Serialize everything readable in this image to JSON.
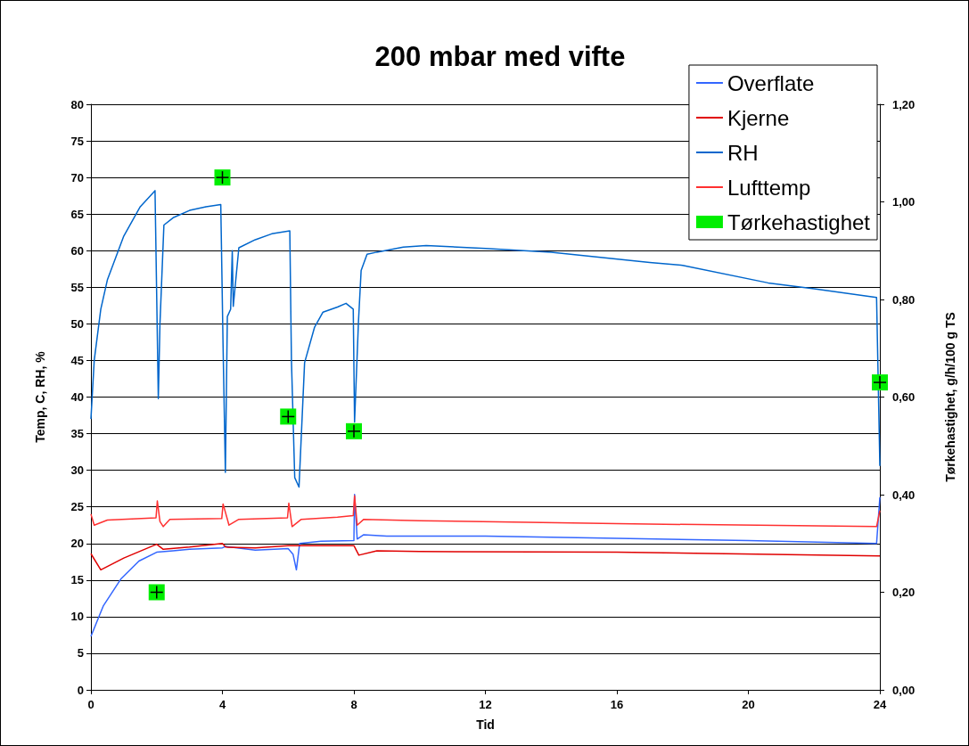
{
  "chart_data": {
    "type": "line",
    "title": "200 mbar med vifte",
    "xlabel": "Tid",
    "ylabel": "Temp, C, RH, %",
    "y2label": "Tørkehastighet, g/h/100 g TS",
    "xlim": [
      0,
      24
    ],
    "xticks": [
      0,
      4,
      8,
      12,
      16,
      20,
      24
    ],
    "ylim": [
      0,
      80
    ],
    "yticks": [
      0,
      5,
      10,
      15,
      20,
      25,
      30,
      35,
      40,
      45,
      50,
      55,
      60,
      65,
      70,
      75,
      80
    ],
    "y2lim": [
      0,
      1.2
    ],
    "y2ticks": [
      {
        "value": 0,
        "label": "0,00"
      },
      {
        "value": 0.2,
        "label": "0,20"
      },
      {
        "value": 0.4,
        "label": "0,40"
      },
      {
        "value": 0.6,
        "label": "0,60"
      },
      {
        "value": 0.8,
        "label": "0,80"
      },
      {
        "value": 1,
        "label": "1,00"
      },
      {
        "value": 1.2,
        "label": "1,20"
      }
    ],
    "grid": "y",
    "legend": "top right",
    "marker": "none",
    "series": [
      {
        "name": "Overflate",
        "color": "#3366ff",
        "x": [
          0,
          0.38,
          0.92,
          1.46,
          2,
          2.5,
          3,
          4,
          4.1,
          5,
          6,
          6.15,
          6.25,
          6.35,
          7,
          8,
          8.02,
          8.1,
          8.3,
          9,
          12,
          16,
          20,
          23.9,
          24
        ],
        "values": [
          7.3,
          11.5,
          15.2,
          17.6,
          18.8,
          19,
          19.2,
          19.4,
          19.6,
          19.1,
          19.3,
          18.5,
          16.4,
          20,
          20.3,
          20.4,
          26.7,
          20.6,
          21.2,
          21,
          21,
          20.7,
          20.4,
          20,
          26.3
        ]
      },
      {
        "name": "Kjerne",
        "color": "#e00000",
        "x": [
          0,
          0.3,
          1,
          2,
          2.2,
          3,
          4,
          4.1,
          5,
          6,
          7,
          8,
          8.15,
          8.7,
          10,
          16,
          24
        ],
        "values": [
          18.6,
          16.4,
          18,
          19.9,
          19.2,
          19.5,
          20,
          19.5,
          19.4,
          19.7,
          19.7,
          19.7,
          18.4,
          19,
          18.9,
          18.8,
          18.3
        ]
      },
      {
        "name": "RH",
        "color": "#0066cc",
        "x": [
          0,
          0.1,
          0.3,
          0.5,
          1,
          1.5,
          1.95,
          2.05,
          2.1,
          2.22,
          2.5,
          3,
          3.5,
          3.95,
          4.02,
          4.09,
          4.15,
          4.25,
          4.3,
          4.33,
          4.5,
          5,
          5.5,
          6.05,
          6.1,
          6.2,
          6.33,
          6.5,
          6.8,
          7.06,
          7.5,
          7.76,
          7.98,
          8.02,
          8.14,
          8.22,
          8.4,
          8.7,
          9.5,
          10.2,
          12,
          14,
          17,
          18,
          20.6,
          22,
          23.9,
          24
        ],
        "values": [
          37,
          45,
          52,
          56,
          62,
          66,
          68.2,
          39.8,
          50,
          63.5,
          64.5,
          65.5,
          66,
          66.3,
          47,
          29.7,
          51,
          52,
          60,
          52.4,
          60.4,
          61.5,
          62.3,
          62.7,
          45,
          29,
          27.7,
          44.7,
          49.5,
          51.6,
          52.3,
          52.8,
          52,
          36.6,
          50.4,
          57.3,
          59.5,
          59.8,
          60.5,
          60.7,
          60.3,
          59.8,
          58.4,
          58,
          55.6,
          54.8,
          53.6,
          30.6
        ]
      },
      {
        "name": "Lufttemp",
        "color": "#ff3030",
        "x": [
          0,
          0.1,
          0.5,
          1.98,
          2.02,
          2.1,
          2.2,
          2.4,
          3.98,
          4.02,
          4.2,
          4.5,
          5.98,
          6.02,
          6.12,
          6.4,
          7.5,
          7.98,
          8.02,
          8.1,
          8.3,
          10,
          16,
          23.9,
          24
        ],
        "values": [
          24,
          22.5,
          23.2,
          23.5,
          25.8,
          23,
          22.3,
          23.3,
          23.4,
          25.4,
          22.5,
          23.3,
          23.5,
          25.5,
          22.3,
          23.3,
          23.6,
          23.8,
          26.5,
          22.5,
          23.3,
          23.1,
          22.7,
          22.3,
          24.5
        ]
      },
      {
        "name": "Tørkehastighet",
        "type": "scatter",
        "marker": "square",
        "axis": "y2",
        "color": "#00ee00",
        "x": [
          2,
          4,
          6,
          8,
          24
        ],
        "values": [
          0.2,
          1.05,
          0.56,
          0.53,
          0.63
        ]
      }
    ]
  }
}
